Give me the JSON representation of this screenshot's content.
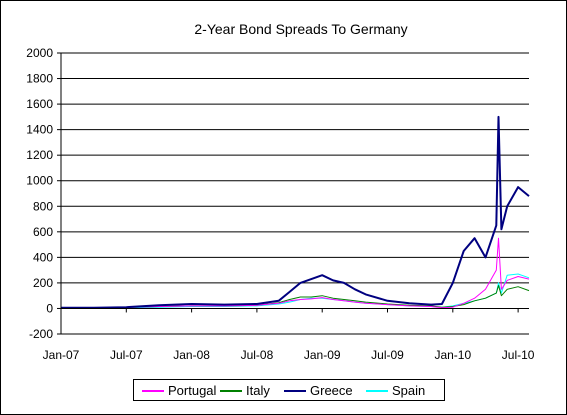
{
  "chart_data": {
    "type": "line",
    "title": "2-Year Bond Spreads To Germany",
    "xlabel": "",
    "ylabel": "",
    "ylim": [
      -200,
      2000
    ],
    "yticks": [
      -200,
      0,
      200,
      400,
      600,
      800,
      1000,
      1200,
      1400,
      1600,
      1800,
      2000
    ],
    "xlim": [
      "2007-01",
      "2010-08"
    ],
    "xticks": [
      "Jan-07",
      "Jul-07",
      "Jan-08",
      "Jul-08",
      "Jan-09",
      "Jul-09",
      "Jan-10",
      "Jul-10"
    ],
    "grid": "horizontal",
    "legend_position": "bottom",
    "x": [
      "2007-01",
      "2007-04",
      "2007-07",
      "2007-10",
      "2008-01",
      "2008-04",
      "2008-07",
      "2008-09",
      "2008-10",
      "2008-11",
      "2008-12",
      "2009-01",
      "2009-02",
      "2009-03",
      "2009-04",
      "2009-05",
      "2009-07",
      "2009-09",
      "2009-11",
      "2009-12",
      "2010-01",
      "2010-02",
      "2010-03",
      "2010-04",
      "2010-05-01",
      "2010-05-07",
      "2010-05-15",
      "2010-06",
      "2010-07",
      "2010-08"
    ],
    "series": [
      {
        "name": "Portugal",
        "color": "#ff00ff",
        "values": [
          5,
          5,
          8,
          15,
          20,
          20,
          25,
          40,
          60,
          70,
          75,
          85,
          70,
          60,
          50,
          40,
          30,
          20,
          15,
          5,
          10,
          40,
          80,
          150,
          300,
          550,
          150,
          220,
          250,
          230
        ]
      },
      {
        "name": "Italy",
        "color": "#008000",
        "values": [
          5,
          5,
          8,
          15,
          20,
          20,
          25,
          45,
          70,
          90,
          90,
          100,
          80,
          70,
          60,
          50,
          35,
          25,
          20,
          10,
          15,
          30,
          60,
          80,
          120,
          180,
          100,
          150,
          170,
          140
        ]
      },
      {
        "name": "Greece",
        "color": "#000080",
        "values": [
          5,
          5,
          10,
          25,
          35,
          30,
          35,
          60,
          130,
          200,
          230,
          260,
          220,
          200,
          150,
          110,
          60,
          40,
          30,
          35,
          200,
          450,
          550,
          400,
          650,
          1500,
          620,
          800,
          950,
          880
        ]
      },
      {
        "name": "Spain",
        "color": "#00ffff",
        "values": [
          0,
          0,
          5,
          10,
          15,
          15,
          20,
          35,
          50,
          70,
          80,
          80,
          70,
          60,
          50,
          40,
          30,
          20,
          15,
          10,
          20,
          40,
          60,
          80,
          120,
          200,
          120,
          260,
          270,
          240
        ]
      }
    ]
  }
}
